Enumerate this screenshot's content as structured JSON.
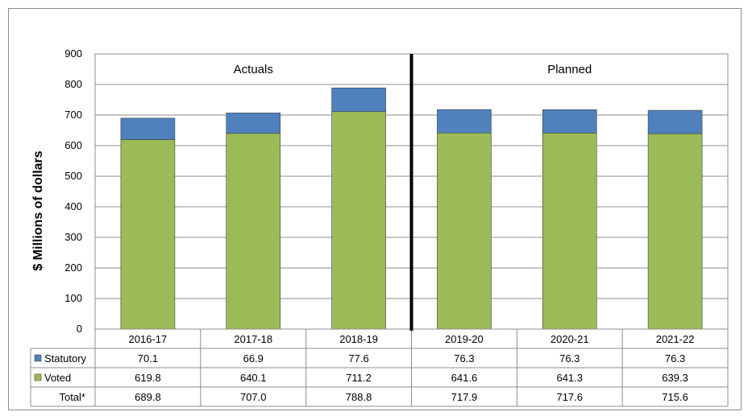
{
  "chart_data": {
    "type": "bar",
    "stacked": true,
    "ylabel": "$ Millions of dollars",
    "ylim": [
      0,
      900
    ],
    "yticks": [
      0,
      100,
      200,
      300,
      400,
      500,
      600,
      700,
      800,
      900
    ],
    "grid": true,
    "categories": [
      "2016-17",
      "2017-18",
      "2018-19",
      "2019-20",
      "2020-21",
      "2021-22"
    ],
    "series": [
      {
        "name": "Voted",
        "color": "#9bbb59",
        "values": [
          619.8,
          640.1,
          711.2,
          641.6,
          641.3,
          639.3
        ]
      },
      {
        "name": "Statutory",
        "color": "#4f81bd",
        "values": [
          70.1,
          66.9,
          77.6,
          76.3,
          76.3,
          76.3
        ]
      }
    ],
    "table": {
      "row_order": [
        "Statutory",
        "Voted",
        "Total*"
      ],
      "rows": {
        "Statutory": [
          "70.1",
          "66.9",
          "77.6",
          "76.3",
          "76.3",
          "76.3"
        ],
        "Voted": [
          "619.8",
          "640.1",
          "711.2",
          "641.6",
          "641.3",
          "639.3"
        ],
        "Total*": [
          "689.8",
          "707.0",
          "788.8",
          "717.9",
          "717.6",
          "715.6"
        ]
      }
    },
    "annotations": [
      {
        "text": "Actuals",
        "categories": [
          0,
          2
        ]
      },
      {
        "text": "Planned",
        "categories": [
          3,
          5
        ]
      }
    ],
    "divider_after_category": 2
  }
}
